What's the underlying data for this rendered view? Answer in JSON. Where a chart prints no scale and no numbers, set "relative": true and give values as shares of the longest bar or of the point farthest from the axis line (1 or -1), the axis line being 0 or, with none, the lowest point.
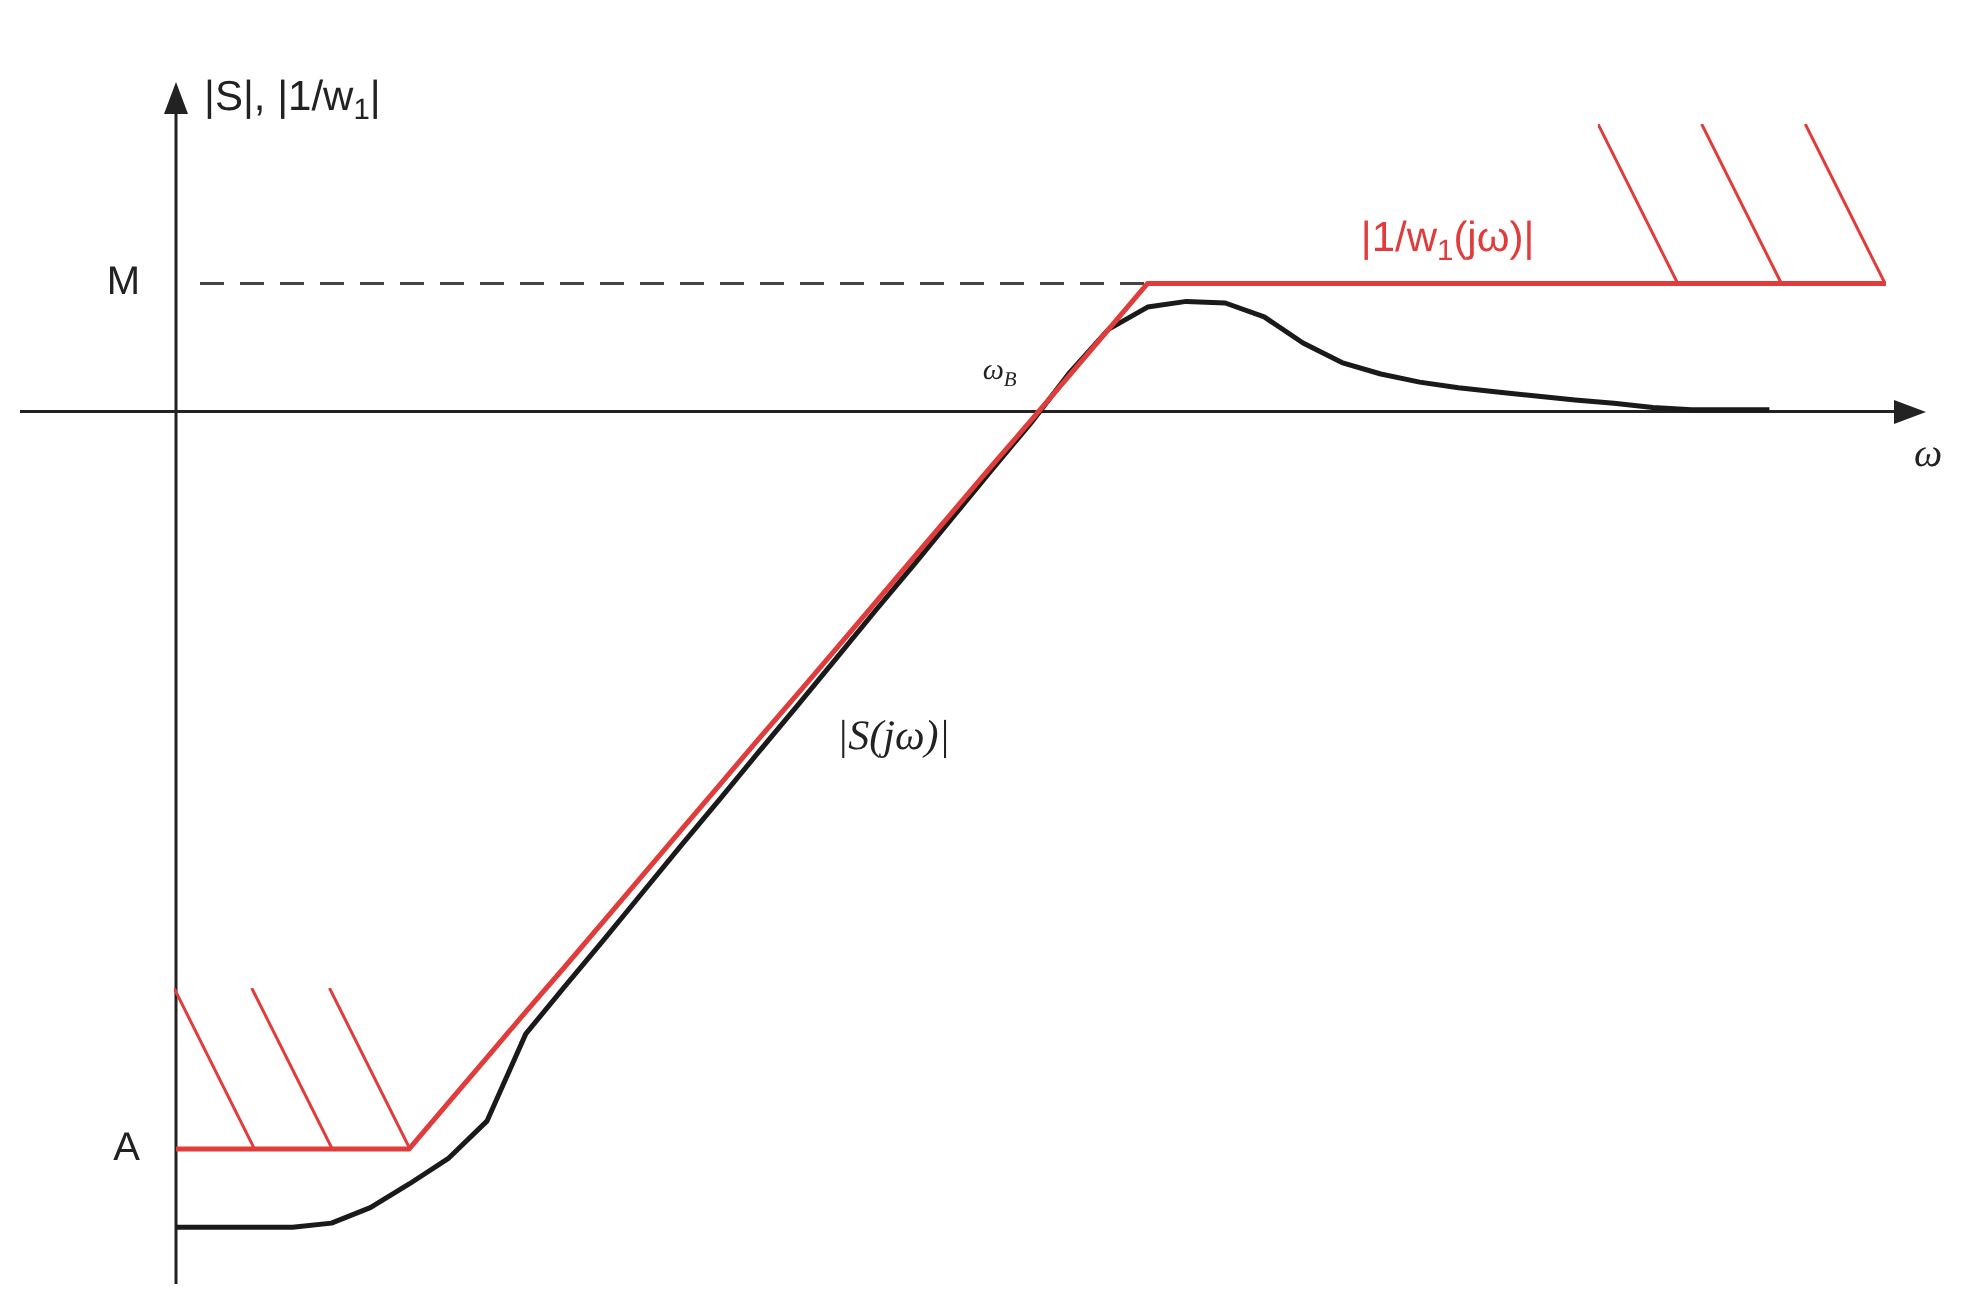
{
  "chart_data": {
    "type": "line",
    "relative": true,
    "ylabel": "|S|, |1/w$_{1}$|",
    "xlabel": "ω",
    "legend": false,
    "marker": "none",
    "categories": [
      null,
      null,
      null,
      null,
      null,
      null,
      null,
      null,
      null,
      null,
      null,
      null,
      null,
      null,
      null,
      null,
      null,
      null,
      null,
      null,
      null,
      null,
      null,
      null,
      null,
      null,
      null,
      null,
      null,
      null,
      null,
      null,
      null,
      null,
      null,
      null,
      null,
      null,
      null,
      null,
      null,
      null,
      null,
      null,
      null
    ],
    "series": [
      {
        "name": "|1/w$_{1}$(jω)|",
        "color": "#e03c3c",
        "values": [
          -0.904,
          -0.904,
          -0.904,
          -0.904,
          -0.904,
          -0.904,
          -0.904,
          -0.848,
          -0.792,
          -0.736,
          -0.681,
          -0.625,
          -0.569,
          -0.513,
          -0.457,
          -0.401,
          -0.346,
          -0.29,
          -0.234,
          -0.178,
          -0.122,
          -0.066,
          -0.011,
          0.045,
          0.101,
          0.157,
          0.157,
          0.157,
          0.157,
          0.157,
          0.157,
          0.157,
          0.157,
          0.157,
          0.157,
          0.157,
          0.157,
          0.157,
          0.157,
          0.157,
          0.157,
          0.157,
          0.157,
          0.157,
          0.157
        ]
      },
      {
        "name": "|S(jω)|",
        "color": "#1a1a1a",
        "values": [
          -1,
          -1,
          -1,
          -1,
          -0.995,
          -0.976,
          -0.947,
          -0.916,
          -0.87,
          -0.763,
          -0.705,
          -0.648,
          -0.59,
          -0.532,
          -0.475,
          -0.417,
          -0.36,
          -0.302,
          -0.244,
          -0.187,
          -0.129,
          -0.071,
          -0.014,
          0.048,
          0.101,
          0.128,
          0.135,
          0.133,
          0.116,
          0.084,
          0.06,
          0.046,
          0.036,
          0.029,
          0.024,
          0.019,
          0.014,
          0.01,
          0.005,
          0.002,
          0.002,
          0.002,
          null,
          null,
          null
        ]
      }
    ],
    "ref_lines": [
      {
        "axis": "y",
        "value": 0.157,
        "label": "M",
        "line_style": "dashed",
        "color": "#444444"
      }
    ],
    "annotations": [
      "A",
      "ω$_{B}$"
    ]
  }
}
